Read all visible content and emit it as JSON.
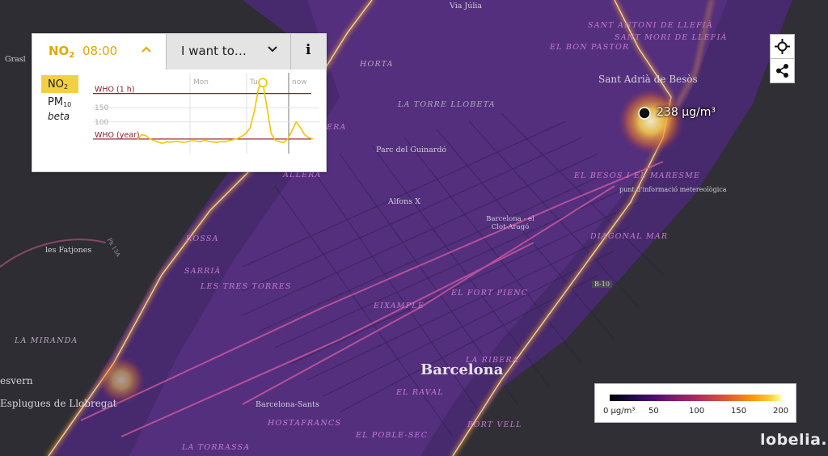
{
  "panel": {
    "pollutant_tab": {
      "name": "NO",
      "name_sub": "2",
      "time": "08:00"
    },
    "want_to_label": "I want to…",
    "info_label": "i",
    "pollutants": [
      {
        "name": "NO",
        "sub": "2",
        "selected": true
      },
      {
        "name": "PM",
        "sub": "10",
        "selected": false
      }
    ],
    "beta_label": "beta"
  },
  "chart_data": {
    "type": "line",
    "days": [
      "Mon",
      "Tue",
      "now"
    ],
    "y_ticks": [
      100,
      150
    ],
    "thresholds": [
      {
        "label": "WHO (1 h)",
        "value": 200
      },
      {
        "label": "WHO (year)",
        "value": 40
      }
    ],
    "ylim": [
      0,
      250
    ],
    "series": [
      {
        "values": [
          38,
          55,
          52,
          40,
          35,
          28,
          25,
          30,
          29,
          32,
          30,
          28,
          31,
          34,
          33,
          30,
          35,
          32,
          30,
          28,
          31,
          30,
          35,
          38,
          42,
          50,
          60,
          80,
          140,
          220,
          238,
          150,
          60,
          35,
          30,
          28,
          40,
          70,
          100,
          80,
          55,
          45,
          40
        ]
      }
    ],
    "highlight": {
      "index": 30,
      "value": 238
    },
    "colors": {
      "line": "#f4c400",
      "threshold": "#8b1f2c",
      "grid": "#e2e2e2"
    }
  },
  "map": {
    "reading": {
      "value": "238",
      "unit": "µg/m³"
    },
    "districts": [
      {
        "text": "SANT ANTONI DE LLEFIÀ",
        "cls": "district"
      },
      {
        "text": "SANT MORI DE LLEFIÀ",
        "cls": "district"
      },
      {
        "text": "EL BON PASTOR",
        "cls": "district"
      },
      {
        "text": "HORTA",
        "cls": "district dark"
      },
      {
        "text": "LA TORRE LLOBETA",
        "cls": "district dark"
      },
      {
        "text": "EL BESÒS I EL MARESME",
        "cls": "district"
      },
      {
        "text": "DIAGONAL MAR",
        "cls": "district"
      },
      {
        "text": "SARRIÀ",
        "cls": "district"
      },
      {
        "text": "LES TRES TORRES",
        "cls": "district"
      },
      {
        "text": "EIXAMPLE",
        "cls": "district"
      },
      {
        "text": "EL FORT PIENC",
        "cls": "district"
      },
      {
        "text": "LA RIBERA",
        "cls": "district"
      },
      {
        "text": "EL RAVAL",
        "cls": "district"
      },
      {
        "text": "HOSTAFRANCS",
        "cls": "district"
      },
      {
        "text": "PORT VELL",
        "cls": "district"
      },
      {
        "text": "EL POBLE-SEC",
        "cls": "district"
      },
      {
        "text": "LA TORRASSA",
        "cls": "district"
      },
      {
        "text": "LA MIRANDA",
        "cls": "district dark"
      },
      {
        "text": "ERA",
        "cls": "district"
      },
      {
        "text": "ALLERA",
        "cls": "district"
      },
      {
        "text": "ROSSA",
        "cls": "district"
      }
    ],
    "places": [
      {
        "text": "Via Júlia",
        "cls": ""
      },
      {
        "text": "Sant Adrià de Besòs",
        "cls": "mid"
      },
      {
        "text": "Parc del Guinardó",
        "cls": ""
      },
      {
        "text": "Alfons X",
        "cls": ""
      },
      {
        "text": "Barcelona - el Clot-Aragó",
        "cls": ""
      },
      {
        "text": "punt d'informació metereològica",
        "cls": ""
      },
      {
        "text": "les Fatjones",
        "cls": ""
      },
      {
        "text": "Barcelona",
        "cls": "big"
      },
      {
        "text": "Barcelona-Sants",
        "cls": ""
      },
      {
        "text": "Esplugues de Llobregat",
        "cls": "mid"
      },
      {
        "text": "esvern",
        "cls": "mid"
      },
      {
        "text": "Grasl",
        "cls": ""
      },
      {
        "text": "B-10",
        "cls": ""
      },
      {
        "text": "Pk 13A",
        "cls": ""
      }
    ]
  },
  "legend": {
    "ticks": [
      "0 µg/m³",
      "50",
      "100",
      "150",
      "200"
    ]
  },
  "logo": "lobelia."
}
